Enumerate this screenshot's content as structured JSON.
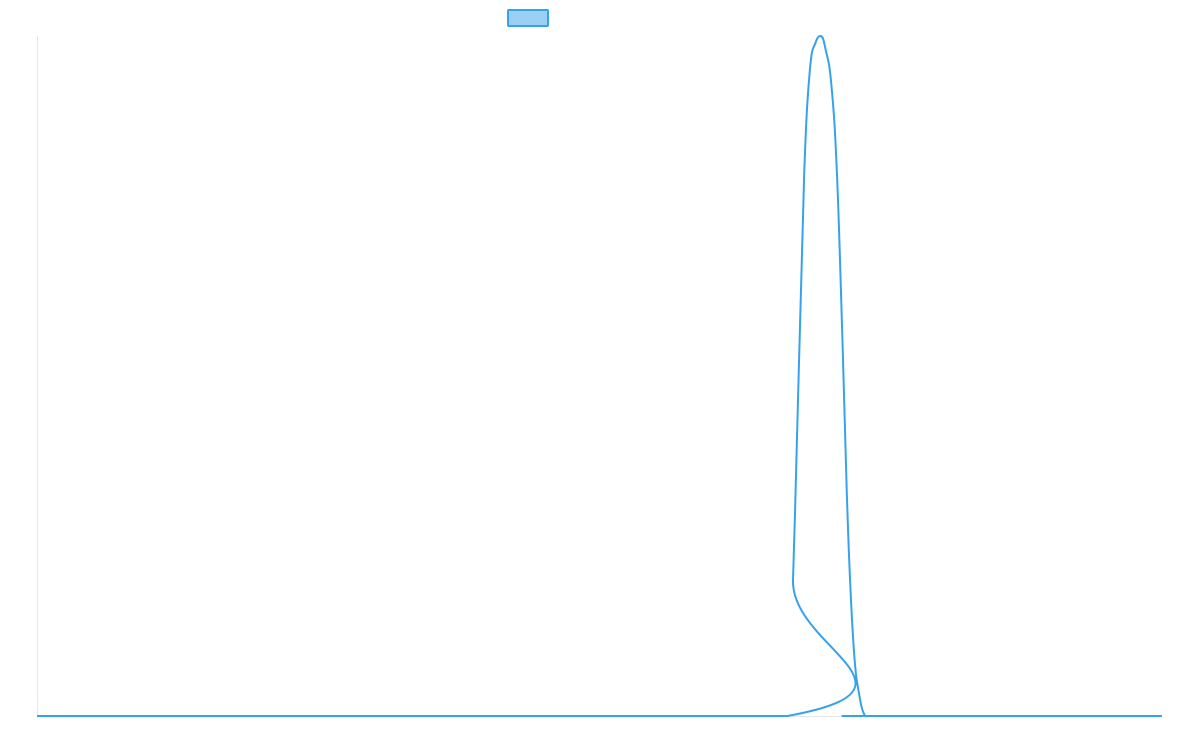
{
  "chart_data": {
    "type": "line",
    "title": "",
    "xlabel": "",
    "ylabel": "",
    "grid": false,
    "legend": {
      "placement": "top-center"
    },
    "x_range": [
      0,
      100
    ],
    "y_range": [
      0,
      1
    ],
    "series": [
      {
        "color": "#36a2eb",
        "fill": "#9ad0f5",
        "x": [
          0,
          66.7,
          67.2,
          67.7,
          68.2,
          68.7,
          69.2,
          69.7,
          70.1,
          70.6,
          71.1,
          71.6,
          72.1,
          72.6,
          73.1,
          73.6,
          74.0,
          100
        ],
        "y": [
          0,
          0,
          0.2,
          0.5,
          0.8,
          0.95,
          0.99,
          1.0,
          0.98,
          0.93,
          0.8,
          0.55,
          0.27,
          0.1,
          0.03,
          0.0,
          0,
          0
        ]
      }
    ]
  }
}
